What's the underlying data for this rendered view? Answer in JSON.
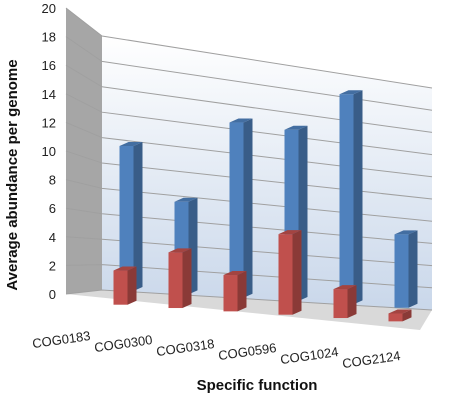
{
  "chart_data": {
    "type": "bar",
    "title": "",
    "xlabel": "Specific function",
    "ylabel": "Average abundance per genome",
    "ylim": [
      0,
      20
    ],
    "yticks": [
      0,
      2,
      4,
      6,
      8,
      10,
      12,
      14,
      16,
      18,
      20
    ],
    "categories": [
      "COG0183",
      "COG0300",
      "COG0318",
      "COG0596",
      "COG1024",
      "COG2124"
    ],
    "series": [
      {
        "values": [
          11.5,
          7.5,
          14.5,
          14.5,
          18.2,
          6.5
        ]
      },
      {
        "values": [
          2.7,
          4.5,
          3.0,
          6.8,
          2.5,
          0.7
        ]
      }
    ],
    "grid": true,
    "legend": "none",
    "colors": {
      "series_0": "#4f81bd",
      "series_1": "#c0504d",
      "wall": "#ffffff",
      "side_wall": "#a6a6a6",
      "floor": "#d9d9d9",
      "grid": "#a0a0a0"
    }
  }
}
